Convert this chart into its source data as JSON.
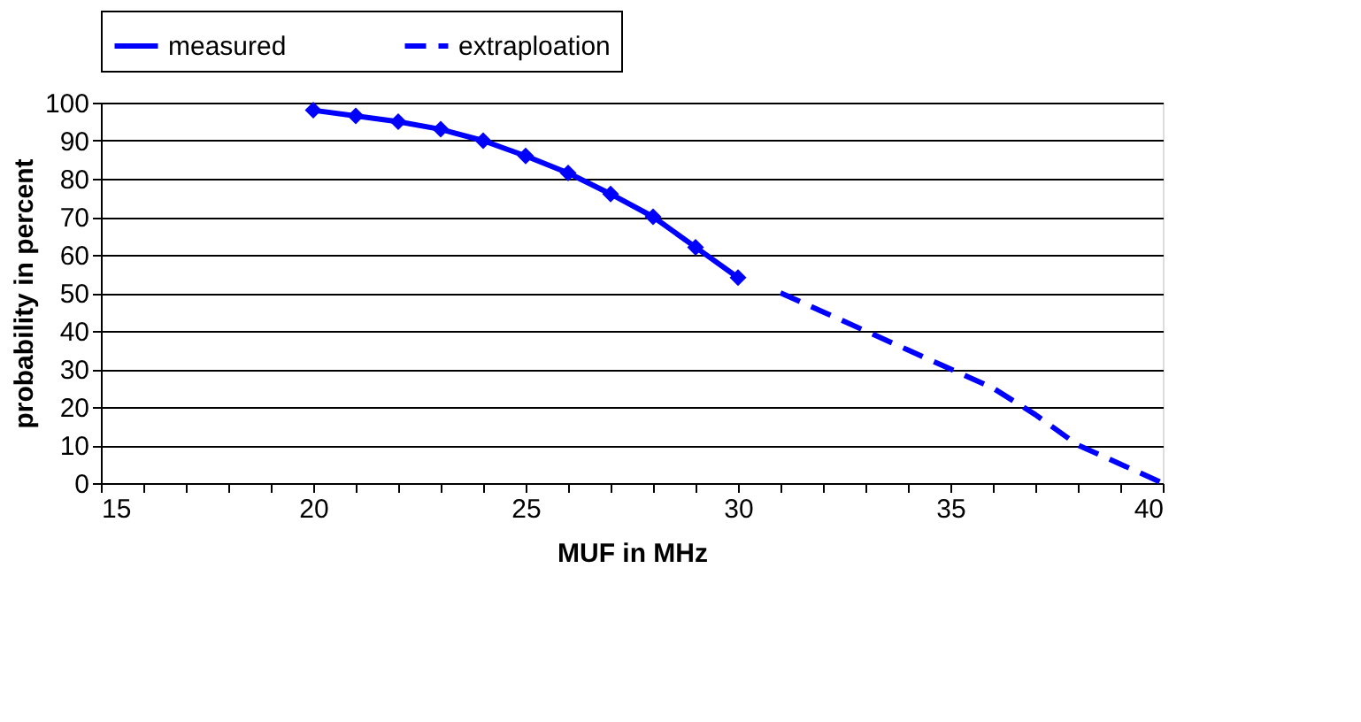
{
  "chart_data": {
    "type": "line",
    "xlabel": "MUF in MHz",
    "ylabel": "probability in percent",
    "xlim": [
      15,
      40
    ],
    "ylim": [
      0,
      100
    ],
    "xticks": [
      15,
      {
        "value": 16,
        "label": null
      },
      {
        "value": 17,
        "label": null
      },
      {
        "value": 18,
        "label": null
      },
      {
        "value": 19,
        "label": null
      },
      20,
      {
        "value": 21,
        "label": null
      },
      {
        "value": 22,
        "label": null
      },
      {
        "value": 23,
        "label": null
      },
      {
        "value": 24,
        "label": null
      },
      25,
      {
        "value": 26,
        "label": null
      },
      {
        "value": 27,
        "label": null
      },
      {
        "value": 28,
        "label": null
      },
      {
        "value": 29,
        "label": null
      },
      30,
      {
        "value": 31,
        "label": null
      },
      {
        "value": 32,
        "label": null
      },
      {
        "value": 33,
        "label": null
      },
      {
        "value": 34,
        "label": null
      },
      35,
      {
        "value": 36,
        "label": null
      },
      {
        "value": 37,
        "label": null
      },
      {
        "value": 38,
        "label": null
      },
      {
        "value": 39,
        "label": null
      },
      40
    ],
    "yticks": [
      0,
      10,
      20,
      30,
      40,
      50,
      60,
      70,
      80,
      90,
      100
    ],
    "grid": "y",
    "legend": "top",
    "series": [
      {
        "name": "measured",
        "color": "#0000ff",
        "marker": "diamond",
        "line_style": "solid",
        "x": [
          20,
          21,
          22,
          23,
          24,
          25,
          26,
          27,
          28,
          29,
          30
        ],
        "values": [
          98,
          96.5,
          95,
          93,
          90,
          86,
          81.5,
          76,
          70,
          62,
          54
        ]
      },
      {
        "name": "extraploation",
        "color": "#0000ff",
        "marker": "none",
        "line_style": "dashed",
        "x": [
          31,
          32,
          33,
          34,
          35,
          36,
          37,
          38,
          39,
          40
        ],
        "values": [
          50,
          45,
          40,
          35,
          30,
          25,
          18,
          10,
          5,
          0
        ]
      }
    ]
  }
}
